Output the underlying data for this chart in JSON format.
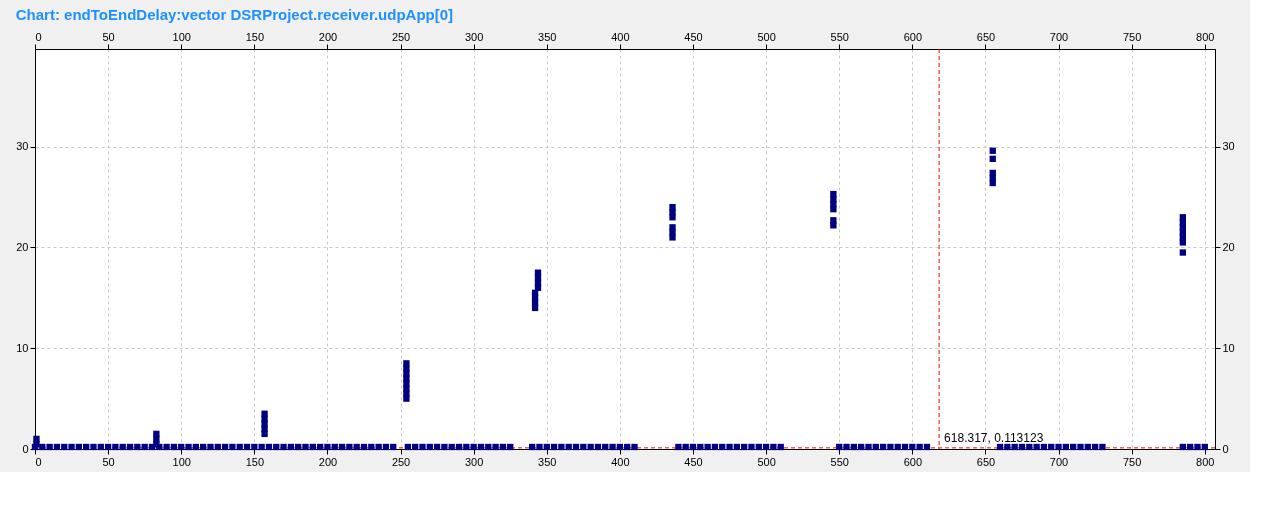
{
  "chart_data": {
    "type": "scatter",
    "title": "Chart: endToEndDelay:vector DSRProject.receiver.udpApp[0]",
    "xlim": [
      0,
      807
    ],
    "xticks": [
      0,
      50,
      100,
      150,
      200,
      250,
      300,
      350,
      400,
      450,
      500,
      550,
      600,
      650,
      700,
      750,
      800
    ],
    "x2lim": [
      0,
      807
    ],
    "x2ticks": [
      0,
      50,
      100,
      150,
      200,
      250,
      300,
      350,
      400,
      450,
      500,
      550,
      600,
      650,
      700,
      750,
      800
    ],
    "ylim": [
      0,
      39.7
    ],
    "yticks": [
      0,
      10,
      20,
      30
    ],
    "y2lim": [
      0,
      39.7
    ],
    "y2ticks": [
      0,
      10,
      20,
      30
    ],
    "grid": true,
    "marker": "square",
    "ref_lines": [
      {
        "axis": "x",
        "value": 618.317,
        "label": "618.317, 0.113123",
        "color": "#ff0000",
        "line_style": "dashed"
      },
      {
        "axis": "y",
        "value": 0.113123,
        "color": "#ff0000",
        "line_style": "dashed"
      }
    ],
    "series": [
      {
        "color": "#000080",
        "x": [
          0,
          5,
          10,
          15,
          20,
          25,
          30,
          35,
          40,
          45,
          50,
          55,
          60,
          65,
          70,
          75,
          80,
          85,
          90,
          95,
          100,
          105,
          110,
          115,
          120,
          125,
          130,
          135,
          140,
          145,
          150,
          155,
          160,
          165,
          170,
          175,
          180,
          185,
          190,
          195,
          200,
          205,
          210,
          215,
          220,
          225,
          230,
          235,
          240,
          245,
          255,
          260,
          265,
          270,
          275,
          280,
          285,
          290,
          295,
          300,
          305,
          310,
          315,
          320,
          325,
          340,
          345,
          350,
          355,
          360,
          365,
          370,
          375,
          380,
          385,
          390,
          395,
          400,
          405,
          410,
          440,
          445,
          450,
          455,
          460,
          465,
          470,
          475,
          480,
          485,
          490,
          495,
          500,
          505,
          510,
          550,
          555,
          560,
          565,
          570,
          575,
          580,
          585,
          590,
          595,
          600,
          605,
          610,
          660,
          665,
          670,
          675,
          680,
          685,
          690,
          695,
          700,
          705,
          710,
          715,
          720,
          725,
          730,
          785,
          790,
          795,
          800
        ],
        "values": [
          0.2,
          0.2,
          0.2,
          0.2,
          0.2,
          0.2,
          0.2,
          0.2,
          0.2,
          0.2,
          0.2,
          0.2,
          0.2,
          0.2,
          0.2,
          0.2,
          0.2,
          0.2,
          0.2,
          0.2,
          0.2,
          0.2,
          0.2,
          0.2,
          0.2,
          0.2,
          0.2,
          0.2,
          0.2,
          0.2,
          0.2,
          0.2,
          0.2,
          0.2,
          0.2,
          0.2,
          0.2,
          0.2,
          0.2,
          0.2,
          0.2,
          0.2,
          0.2,
          0.2,
          0.2,
          0.2,
          0.2,
          0.2,
          0.2,
          0.2,
          0.2,
          0.2,
          0.2,
          0.2,
          0.2,
          0.2,
          0.2,
          0.2,
          0.2,
          0.2,
          0.2,
          0.2,
          0.2,
          0.2,
          0.2,
          0.2,
          0.2,
          0.2,
          0.2,
          0.2,
          0.2,
          0.2,
          0.2,
          0.2,
          0.2,
          0.2,
          0.2,
          0.2,
          0.2,
          0.2,
          0.2,
          0.2,
          0.2,
          0.2,
          0.2,
          0.2,
          0.2,
          0.2,
          0.2,
          0.2,
          0.2,
          0.2,
          0.2,
          0.2,
          0.2,
          0.2,
          0.2,
          0.2,
          0.2,
          0.2,
          0.2,
          0.2,
          0.2,
          0.2,
          0.2,
          0.2,
          0.2,
          0.2,
          0.2,
          0.2,
          0.2,
          0.2,
          0.2,
          0.2,
          0.2,
          0.2,
          0.2,
          0.2,
          0.2,
          0.2,
          0.2,
          0.2,
          0.2,
          0.2,
          0.2,
          0.2,
          0.2
        ]
      },
      {
        "color": "#000080",
        "x": [
          1,
          1,
          83,
          83,
          83,
          157,
          157,
          157,
          157,
          157,
          254,
          254,
          254,
          254,
          254,
          254,
          254,
          254,
          342,
          342,
          342,
          342,
          344,
          344,
          344,
          344,
          436,
          436,
          436,
          436,
          436,
          436,
          546,
          546,
          546,
          546,
          546,
          546,
          655,
          655,
          655,
          655,
          655,
          785,
          785,
          785,
          785,
          785,
          785,
          785
        ],
        "values": [
          0.5,
          1.0,
          0.5,
          1.0,
          1.5,
          1.5,
          2.0,
          2.5,
          3.0,
          3.5,
          5.0,
          5.5,
          6.0,
          6.5,
          7.0,
          7.5,
          8.0,
          8.5,
          14.0,
          14.5,
          15.0,
          15.5,
          16.0,
          16.5,
          17.0,
          17.5,
          21.0,
          21.5,
          22.0,
          23.0,
          23.5,
          24.0,
          22.2,
          22.7,
          23.8,
          24.3,
          24.8,
          25.3,
          26.4,
          26.9,
          27.4,
          28.8,
          29.6,
          19.5,
          20.5,
          21.0,
          21.5,
          22.0,
          22.5,
          23.0
        ]
      }
    ]
  }
}
